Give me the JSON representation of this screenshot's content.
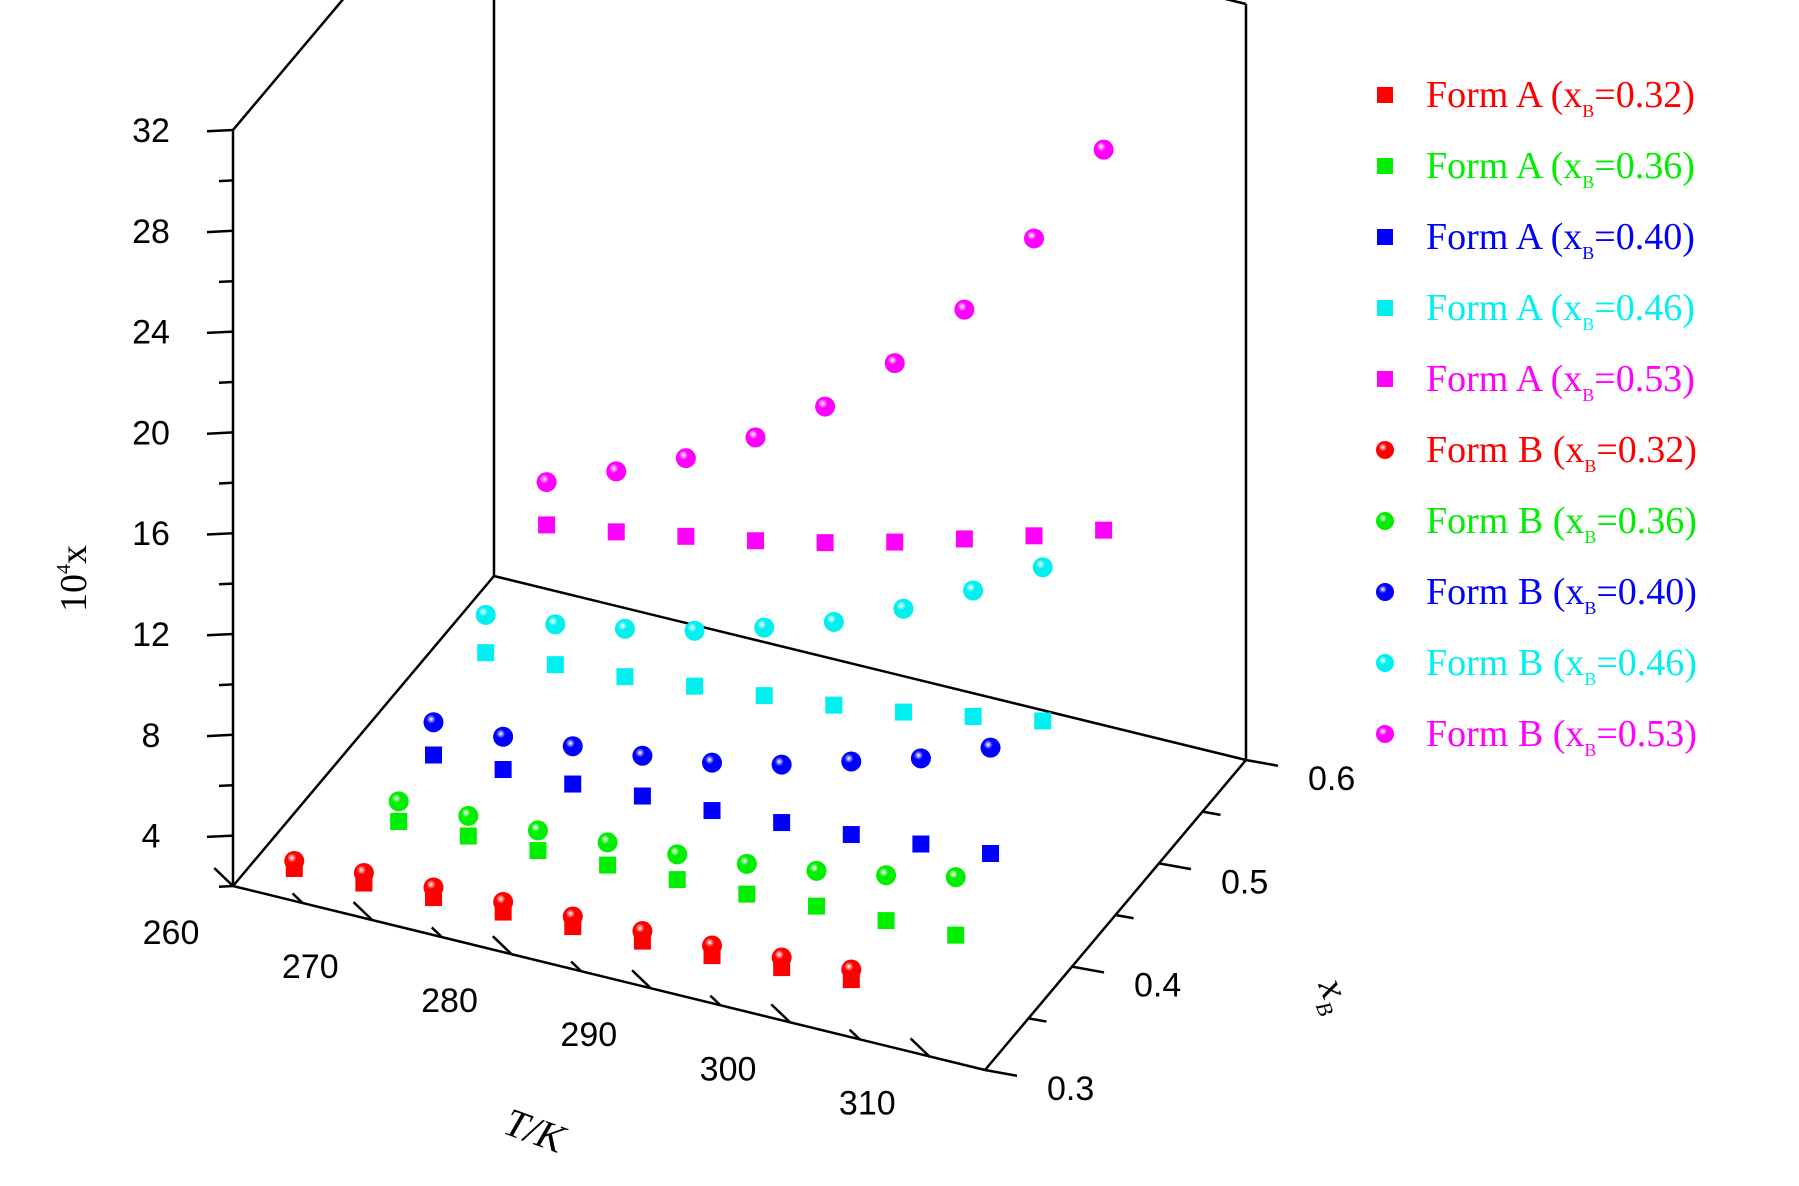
{
  "chart_data": {
    "type": "scatter",
    "projection": "3d",
    "axes": {
      "x": {
        "label": "T/K",
        "range": [
          260,
          314
        ],
        "ticks": [
          "260",
          "270",
          "280",
          "290",
          "300",
          "310"
        ]
      },
      "y": {
        "label": "x",
        "label_subscript": "B",
        "range": [
          0.3,
          0.6
        ],
        "ticks": [
          "0.3",
          "0.4",
          "0.5",
          "0.6"
        ]
      },
      "z": {
        "label_base": "10",
        "label_exp": "4",
        "label_var": "x",
        "range": [
          2,
          32
        ],
        "ticks": [
          "4",
          "8",
          "12",
          "16",
          "20",
          "24",
          "28",
          "32"
        ]
      }
    },
    "grid": false,
    "legend_position": "right",
    "T": [
      263.15,
      268.15,
      273.15,
      278.15,
      283.15,
      288.15,
      293.15,
      298.15,
      303.15,
      308.15
    ],
    "series": [
      {
        "form": "Form A",
        "prefix": "Form A (x",
        "sub": "B",
        "suffix": "=0.32)",
        "xB": 0.32,
        "color": "#ff0000",
        "marker": "square",
        "T": [
          263.15,
          268.15,
          273.15,
          278.15,
          283.15,
          288.15,
          293.15,
          298.15,
          303.15
        ],
        "values": [
          2.3,
          2.4,
          2.5,
          2.6,
          2.7,
          2.8,
          2.9,
          3.1,
          3.3
        ]
      },
      {
        "form": "Form A",
        "prefix": "Form A (x",
        "sub": "B",
        "suffix": "=0.36)",
        "xB": 0.36,
        "color": "#00ee00",
        "marker": "square",
        "T": [
          268.15,
          273.15,
          278.15,
          283.15,
          288.15,
          293.15,
          298.15,
          303.15,
          308.15
        ],
        "values": [
          3.2,
          3.3,
          3.4,
          3.5,
          3.6,
          3.7,
          3.9,
          4.0,
          4.1
        ]
      },
      {
        "form": "Form A",
        "prefix": "Form A (x",
        "sub": "B",
        "suffix": "=0.40)",
        "xB": 0.4,
        "color": "#0000ff",
        "marker": "square",
        "T": [
          268.15,
          273.15,
          278.15,
          283.15,
          288.15,
          293.15,
          298.15,
          303.15,
          308.15
        ],
        "values": [
          4.2,
          4.3,
          4.4,
          4.6,
          4.7,
          4.9,
          5.1,
          5.4,
          5.7
        ]
      },
      {
        "form": "Form A",
        "prefix": "Form A (x",
        "sub": "B",
        "suffix": "=0.46)",
        "xB": 0.46,
        "color": "#00f0f0",
        "marker": "square",
        "T": [
          268.15,
          273.15,
          278.15,
          283.15,
          288.15,
          293.15,
          298.15,
          303.15,
          308.15
        ],
        "values": [
          5.8,
          6.0,
          6.2,
          6.5,
          6.8,
          7.1,
          7.5,
          8.0,
          8.5
        ]
      },
      {
        "form": "Form A",
        "prefix": "Form A (x",
        "sub": "B",
        "suffix": "=0.53)",
        "xB": 0.53,
        "color": "#ff00ff",
        "marker": "square",
        "T": [
          268.15,
          273.15,
          278.15,
          283.15,
          288.15,
          293.15,
          298.15,
          303.15,
          308.15
        ],
        "values": [
          8.0,
          8.4,
          8.9,
          9.4,
          10.0,
          10.7,
          11.5,
          12.3,
          13.2
        ]
      },
      {
        "form": "Form B",
        "prefix": "Form B (x",
        "sub": "B",
        "suffix": "=0.32)",
        "xB": 0.32,
        "color": "#ff0000",
        "marker": "sphere",
        "T": [
          263.15,
          268.15,
          273.15,
          278.15,
          283.15,
          288.15,
          293.15,
          298.15,
          303.15
        ],
        "values": [
          2.6,
          2.8,
          2.9,
          3.0,
          3.1,
          3.2,
          3.3,
          3.5,
          3.7
        ]
      },
      {
        "form": "Form B",
        "prefix": "Form B (x",
        "sub": "B",
        "suffix": "=0.36)",
        "xB": 0.36,
        "color": "#00ee00",
        "marker": "sphere",
        "T": [
          268.15,
          273.15,
          278.15,
          283.15,
          288.15,
          293.15,
          298.15,
          303.15,
          308.15
        ],
        "values": [
          4.0,
          4.1,
          4.2,
          4.4,
          4.6,
          4.9,
          5.3,
          5.8,
          6.4
        ]
      },
      {
        "form": "Form B",
        "prefix": "Form B (x",
        "sub": "B",
        "suffix": "=0.40)",
        "xB": 0.4,
        "color": "#0000ff",
        "marker": "sphere",
        "T": [
          268.15,
          273.15,
          278.15,
          283.15,
          288.15,
          293.15,
          298.15,
          303.15,
          308.15
        ],
        "values": [
          5.5,
          5.6,
          5.9,
          6.2,
          6.6,
          7.2,
          8.0,
          8.8,
          9.9
        ]
      },
      {
        "form": "Form B",
        "prefix": "Form B (x",
        "sub": "B",
        "suffix": "=0.46)",
        "xB": 0.46,
        "color": "#00f0f0",
        "marker": "sphere",
        "T": [
          268.15,
          273.15,
          278.15,
          283.15,
          288.15,
          293.15,
          298.15,
          303.15,
          308.15
        ],
        "values": [
          7.3,
          7.6,
          8.1,
          8.7,
          9.5,
          10.4,
          11.6,
          13.0,
          14.6
        ]
      },
      {
        "form": "Form B",
        "prefix": "Form B (x",
        "sub": "B",
        "suffix": "=0.53)",
        "xB": 0.53,
        "color": "#ff00ff",
        "marker": "sphere",
        "T": [
          268.15,
          273.15,
          278.15,
          283.15,
          288.15,
          293.15,
          298.15,
          303.15,
          308.15
        ],
        "values": [
          9.7,
          10.8,
          12.0,
          13.5,
          15.4,
          17.8,
          20.6,
          24.1,
          28.3
        ]
      }
    ]
  }
}
